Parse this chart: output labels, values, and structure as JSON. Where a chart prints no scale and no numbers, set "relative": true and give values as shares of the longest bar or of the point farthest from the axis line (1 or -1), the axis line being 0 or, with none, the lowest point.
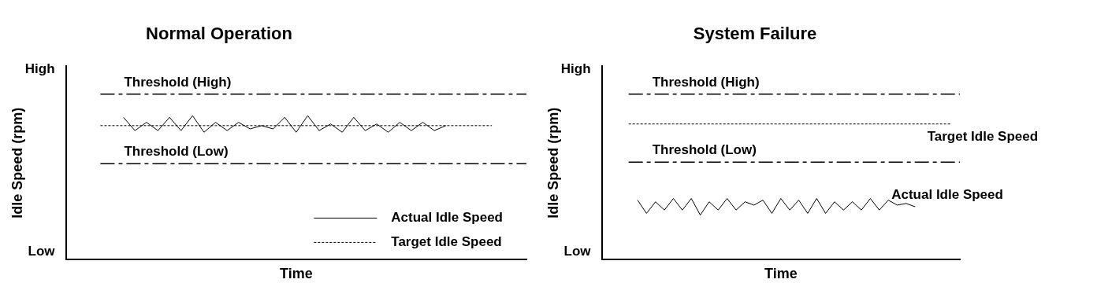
{
  "chart_data": [
    {
      "type": "line",
      "title": "Normal Operation",
      "xlabel": "Time",
      "ylabel": "Idle Speed (rpm)",
      "relative": true,
      "annotations": [
        "High",
        "Low"
      ],
      "categories": [
        null,
        null,
        null,
        null,
        null,
        null,
        null,
        null,
        null,
        null,
        null,
        null,
        null,
        null,
        null,
        null,
        null,
        null,
        null,
        null,
        null,
        null,
        null,
        null,
        null,
        null,
        null,
        null,
        null,
        null,
        null,
        null,
        null,
        null,
        null,
        null,
        null,
        null,
        null,
        null,
        null
      ],
      "series": [
        {
          "name": "Threshold (High)",
          "color": "#000000",
          "line_style": "dashed",
          "values": [
            null,
            null,
            null,
            1,
            1,
            1,
            1,
            1,
            1,
            1,
            1,
            1,
            1,
            1,
            1,
            1,
            1,
            1,
            1,
            1,
            1,
            1,
            1,
            1,
            1,
            1,
            1,
            1,
            1,
            1,
            1,
            1,
            1,
            1,
            1,
            1,
            1,
            1,
            1,
            1,
            1
          ]
        },
        {
          "name": "Actual Idle Speed",
          "color": "#000000",
          "line_style": "solid",
          "values": [
            null,
            null,
            null,
            null,
            null,
            0.86,
            0.78,
            0.83,
            0.78,
            0.86,
            0.78,
            0.87,
            0.77,
            0.83,
            0.78,
            0.83,
            0.79,
            0.81,
            0.79,
            0.86,
            0.77,
            0.87,
            0.78,
            0.82,
            0.77,
            0.86,
            0.78,
            0.82,
            0.77,
            0.83,
            0.78,
            0.83,
            0.78,
            0.81,
            null,
            null,
            null,
            null,
            null,
            null,
            null
          ]
        },
        {
          "name": "Target Idle Speed",
          "color": "#000000",
          "line_style": "dotted",
          "values": [
            null,
            null,
            null,
            0.81,
            0.81,
            0.81,
            0.81,
            0.81,
            0.81,
            0.81,
            0.81,
            0.81,
            0.81,
            0.81,
            0.81,
            0.81,
            0.81,
            0.81,
            0.81,
            0.81,
            0.81,
            0.81,
            0.81,
            0.81,
            0.81,
            0.81,
            0.81,
            0.81,
            0.81,
            0.81,
            0.81,
            0.81,
            0.81,
            0.81,
            0.81,
            0.81,
            0.81,
            0.81,
            null,
            null,
            null
          ]
        },
        {
          "name": "Threshold (Low)",
          "color": "#000000",
          "line_style": "dashed",
          "values": [
            null,
            null,
            null,
            0.58,
            0.58,
            0.58,
            0.58,
            0.58,
            0.58,
            0.58,
            0.58,
            0.58,
            0.58,
            0.58,
            0.58,
            0.58,
            0.58,
            0.58,
            0.58,
            0.58,
            0.58,
            0.58,
            0.58,
            0.58,
            0.58,
            0.58,
            0.58,
            0.58,
            0.58,
            0.58,
            0.58,
            0.58,
            0.58,
            0.58,
            0.58,
            0.58,
            0.58,
            0.58,
            0.58,
            0.58,
            0.58
          ]
        }
      ],
      "legend": "bottom right",
      "grid": false,
      "marker": "none"
    },
    {
      "type": "line",
      "title": "System Failure",
      "xlabel": "Time",
      "ylabel": "Idle Speed (rpm)",
      "relative": true,
      "annotations": [
        "High",
        "Low"
      ],
      "categories": [
        null,
        null,
        null,
        null,
        null,
        null,
        null,
        null,
        null,
        null,
        null,
        null,
        null,
        null,
        null,
        null,
        null,
        null,
        null,
        null,
        null,
        null,
        null,
        null,
        null,
        null,
        null,
        null,
        null,
        null,
        null,
        null,
        null,
        null,
        null,
        null,
        null,
        null,
        null,
        null,
        null
      ],
      "series": [
        {
          "name": "Threshold (High)",
          "color": "#000000",
          "line_style": "dashed",
          "values": [
            null,
            null,
            null,
            1,
            1,
            1,
            1,
            1,
            1,
            1,
            1,
            1,
            1,
            1,
            1,
            1,
            1,
            1,
            1,
            1,
            1,
            1,
            1,
            1,
            1,
            1,
            1,
            1,
            1,
            1,
            1,
            1,
            1,
            1,
            1,
            1,
            1,
            1,
            1,
            1,
            1
          ]
        },
        {
          "name": "Target Idle Speed",
          "color": "#000000",
          "line_style": "dotted",
          "values": [
            null,
            null,
            null,
            0.82,
            0.82,
            0.82,
            0.82,
            0.82,
            0.82,
            0.82,
            0.82,
            0.82,
            0.82,
            0.82,
            0.82,
            0.82,
            0.82,
            0.82,
            0.82,
            0.82,
            0.82,
            0.82,
            0.82,
            0.82,
            0.82,
            0.82,
            0.82,
            0.82,
            0.82,
            0.82,
            0.82,
            0.82,
            0.82,
            0.82,
            0.82,
            0.82,
            0.82,
            0.82,
            0.82,
            0.82,
            null
          ]
        },
        {
          "name": "Threshold (Low)",
          "color": "#000000",
          "line_style": "dashed",
          "values": [
            null,
            null,
            null,
            0.59,
            0.59,
            0.59,
            0.59,
            0.59,
            0.59,
            0.59,
            0.59,
            0.59,
            0.59,
            0.59,
            0.59,
            0.59,
            0.59,
            0.59,
            0.59,
            0.59,
            0.59,
            0.59,
            0.59,
            0.59,
            0.59,
            0.59,
            0.59,
            0.59,
            0.59,
            0.59,
            0.59,
            0.59,
            0.59,
            0.59,
            0.59,
            0.59,
            0.59,
            0.59,
            0.59,
            0.59,
            0.59
          ]
        },
        {
          "name": "Actual Idle Speed",
          "color": "#000000",
          "line_style": "solid",
          "values": [
            null,
            null,
            null,
            null,
            0.36,
            0.28,
            0.35,
            0.3,
            0.37,
            0.3,
            0.37,
            0.27,
            0.35,
            0.3,
            0.37,
            0.3,
            0.35,
            0.33,
            0.36,
            0.28,
            0.37,
            0.3,
            0.36,
            0.28,
            0.37,
            0.28,
            0.35,
            0.3,
            0.35,
            0.3,
            0.37,
            0.3,
            0.36,
            0.33,
            0.34,
            0.32,
            null,
            null,
            null,
            null,
            null
          ]
        }
      ],
      "legend": false,
      "grid": false,
      "marker": "none"
    }
  ]
}
